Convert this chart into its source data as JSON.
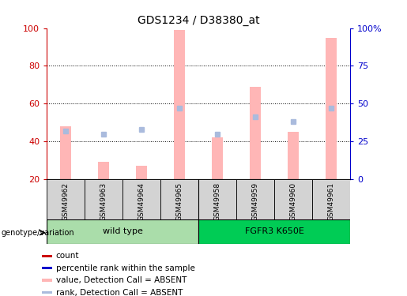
{
  "title": "GDS1234 / D38380_at",
  "samples": [
    "GSM49962",
    "GSM49963",
    "GSM49964",
    "GSM49965",
    "GSM49958",
    "GSM49959",
    "GSM49960",
    "GSM49961"
  ],
  "bar_values": [
    48,
    29,
    27,
    99,
    42,
    69,
    45,
    95
  ],
  "dot_values_right_pct": [
    32,
    30,
    33,
    47,
    30,
    41,
    38,
    47
  ],
  "ylim_left": [
    20,
    100
  ],
  "ylim_right": [
    0,
    100
  ],
  "yticks_left": [
    20,
    40,
    60,
    80,
    100
  ],
  "ytick_labels_left": [
    "20",
    "40",
    "60",
    "80",
    "100"
  ],
  "yticks_right": [
    0,
    25,
    50,
    75,
    100
  ],
  "ytick_labels_right": [
    "0",
    "25",
    "50",
    "75",
    "100%"
  ],
  "bar_color": "#FFB6B6",
  "dot_color": "#AABBDD",
  "left_tick_color": "#CC0000",
  "right_tick_color": "#0000CC",
  "group1_color": "#AADDAA",
  "group2_color": "#00CC55",
  "legend_colors": [
    "#CC0000",
    "#0000CC",
    "#FFB6B6",
    "#AABBDD"
  ],
  "legend_labels": [
    "count",
    "percentile rank within the sample",
    "value, Detection Call = ABSENT",
    "rank, Detection Call = ABSENT"
  ]
}
